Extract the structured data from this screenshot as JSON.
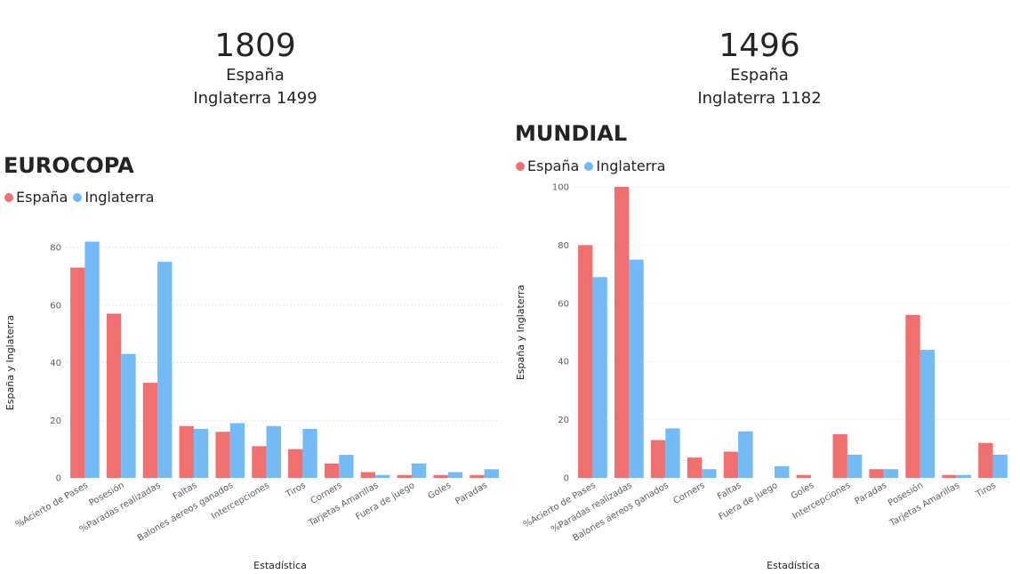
{
  "kpis": [
    {
      "value": "1809",
      "label": "España",
      "sub": "Inglaterra 1499"
    },
    {
      "value": "1496",
      "label": "España",
      "sub": "Inglaterra 1182"
    }
  ],
  "colors": {
    "espana": "#f07070",
    "inglaterra": "#74bbf5"
  },
  "chart_data": [
    {
      "type": "bar",
      "title": "EUROCOPA",
      "xlabel": "Estadística",
      "ylabel": "España y Inglaterra",
      "ylim": [
        0,
        85
      ],
      "yticks": [
        0,
        20,
        40,
        60,
        80
      ],
      "grid": true,
      "legend_position": "top-left",
      "categories": [
        "%Acierto de Pases",
        "Posesión",
        "%Paradas realizadas",
        "Faltas",
        "Balones aereos ganados",
        "Intercepciones",
        "Tiros",
        "Corners",
        "Tarjetas Amarillas",
        "Fuera de juego",
        "Goles",
        "Paradas"
      ],
      "series": [
        {
          "name": "España",
          "values": [
            73,
            57,
            33,
            18,
            16,
            11,
            10,
            5,
            2,
            1,
            1,
            1
          ]
        },
        {
          "name": "Inglaterra",
          "values": [
            82,
            43,
            75,
            17,
            19,
            18,
            17,
            8,
            1,
            5,
            2,
            3
          ]
        }
      ]
    },
    {
      "type": "bar",
      "title": "MUNDIAL",
      "xlabel": "Estadística",
      "ylabel": "España y Inglaterra",
      "ylim": [
        0,
        100
      ],
      "yticks": [
        0,
        20,
        40,
        60,
        80,
        100
      ],
      "grid": true,
      "legend_position": "top-left",
      "categories": [
        "%Acierto de Pases",
        "%Paradas realizadas",
        "Balones aereos ganados",
        "Corners",
        "Faltas",
        "Fuera de juego",
        "Goles",
        "Intercepciones",
        "Paradas",
        "Posesión",
        "Tarjetas Amarillas",
        "Tiros"
      ],
      "series": [
        {
          "name": "España",
          "values": [
            80,
            100,
            13,
            7,
            9,
            0,
            1,
            15,
            3,
            56,
            1,
            12
          ]
        },
        {
          "name": "Inglaterra",
          "values": [
            69,
            75,
            17,
            3,
            16,
            4,
            0,
            8,
            3,
            44,
            1,
            8
          ]
        }
      ]
    }
  ]
}
